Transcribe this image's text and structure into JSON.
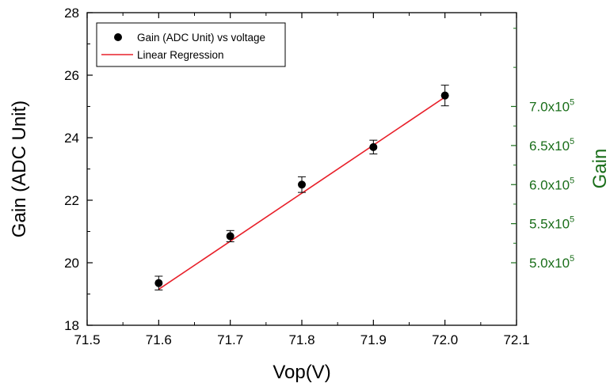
{
  "chart_data": {
    "type": "scatter",
    "xlabel": "Vop(V)",
    "ylabel": "Gain (ADC Unit)",
    "y2label": "Gain",
    "xlim": [
      71.5,
      72.1
    ],
    "ylim": [
      18,
      28
    ],
    "x_ticks": [
      "71.5",
      "71.6",
      "71.7",
      "71.8",
      "71.9",
      "72.0",
      "72.1"
    ],
    "y_ticks": [
      "18",
      "20",
      "22",
      "24",
      "26",
      "28"
    ],
    "y2_ticks": [
      {
        "value": 20.0,
        "mantissa": "5.0x10",
        "exp": "5"
      },
      {
        "value": 21.25,
        "mantissa": "5.5x10",
        "exp": "5"
      },
      {
        "value": 22.5,
        "mantissa": "6.0x10",
        "exp": "5"
      },
      {
        "value": 23.75,
        "mantissa": "6.5x10",
        "exp": "5"
      },
      {
        "value": 25.0,
        "mantissa": "7.0x10",
        "exp": "5"
      }
    ],
    "series": [
      {
        "name": "Gain (ADC Unit) vs voltage",
        "kind": "scatter",
        "x": [
          71.6,
          71.7,
          71.8,
          71.9,
          72.0
        ],
        "y": [
          19.35,
          20.85,
          22.5,
          23.7,
          25.35
        ],
        "yerr": [
          0.22,
          0.18,
          0.25,
          0.22,
          0.33
        ],
        "color": "#000000"
      },
      {
        "name": "Linear Regression",
        "kind": "line",
        "x": [
          71.6,
          72.0
        ],
        "y": [
          19.15,
          25.3
        ],
        "color": "#e8202a"
      }
    ],
    "legend_position": "top-left",
    "colors": {
      "left_axis": "#000000",
      "right_axis": "#1a6e1a",
      "regression": "#e8202a"
    }
  }
}
